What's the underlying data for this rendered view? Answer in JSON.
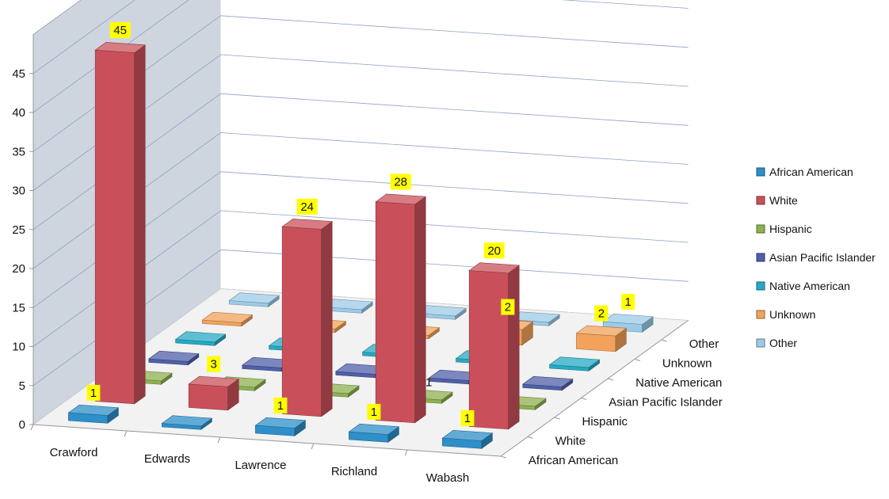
{
  "chart_data": {
    "type": "bar",
    "subtype": "3d-column",
    "categories": [
      "Crawford",
      "Edwards",
      "Lawrence",
      "Richland",
      "Wabash"
    ],
    "series": [
      {
        "name": "African American",
        "values": [
          1,
          0,
          1,
          1,
          1
        ],
        "color": "#2e8fc9"
      },
      {
        "name": "White",
        "values": [
          45,
          3,
          24,
          28,
          20
        ],
        "color": "#c9505a"
      },
      {
        "name": "Hispanic",
        "values": [
          0,
          0,
          0,
          0,
          0
        ],
        "color": "#8db14f"
      },
      {
        "name": "Asian Pacific Islander",
        "values": [
          0,
          0,
          0,
          0,
          0
        ],
        "color": "#4f5fa8"
      },
      {
        "name": "Native American",
        "values": [
          0,
          0,
          0,
          0,
          0
        ],
        "color": "#25a9c4"
      },
      {
        "name": "Unknown",
        "values": [
          0,
          0,
          0,
          2,
          2
        ],
        "color": "#f2a25a"
      },
      {
        "name": "Other",
        "values": [
          0,
          0,
          0,
          0,
          1
        ],
        "color": "#9ccbe8"
      }
    ],
    "data_labels": [
      {
        "series": "African American",
        "category": "Crawford",
        "text": "1"
      },
      {
        "series": "African American",
        "category": "Lawrence",
        "text": "1"
      },
      {
        "series": "African American",
        "category": "Richland",
        "text": "1"
      },
      {
        "series": "African American",
        "category": "Wabash",
        "text": "1"
      },
      {
        "series": "White",
        "category": "Crawford",
        "text": "45"
      },
      {
        "series": "White",
        "category": "Edwards",
        "text": "3"
      },
      {
        "series": "White",
        "category": "Lawrence",
        "text": "24"
      },
      {
        "series": "White",
        "category": "Richland",
        "text": "28"
      },
      {
        "series": "White",
        "category": "Wabash",
        "text": "20"
      },
      {
        "series": "Unknown",
        "category": "Richland",
        "text": "2"
      },
      {
        "series": "Unknown",
        "category": "Wabash",
        "text": "2"
      },
      {
        "series": "Other",
        "category": "Wabash",
        "text": "1"
      }
    ],
    "stray_label": "1",
    "yticks": [
      "0",
      "5",
      "10",
      "15",
      "20",
      "25",
      "30",
      "35",
      "40",
      "45"
    ],
    "ylim": [
      0,
      45
    ],
    "grid": true,
    "legend_position": "right",
    "label_background": "#ffff00"
  }
}
